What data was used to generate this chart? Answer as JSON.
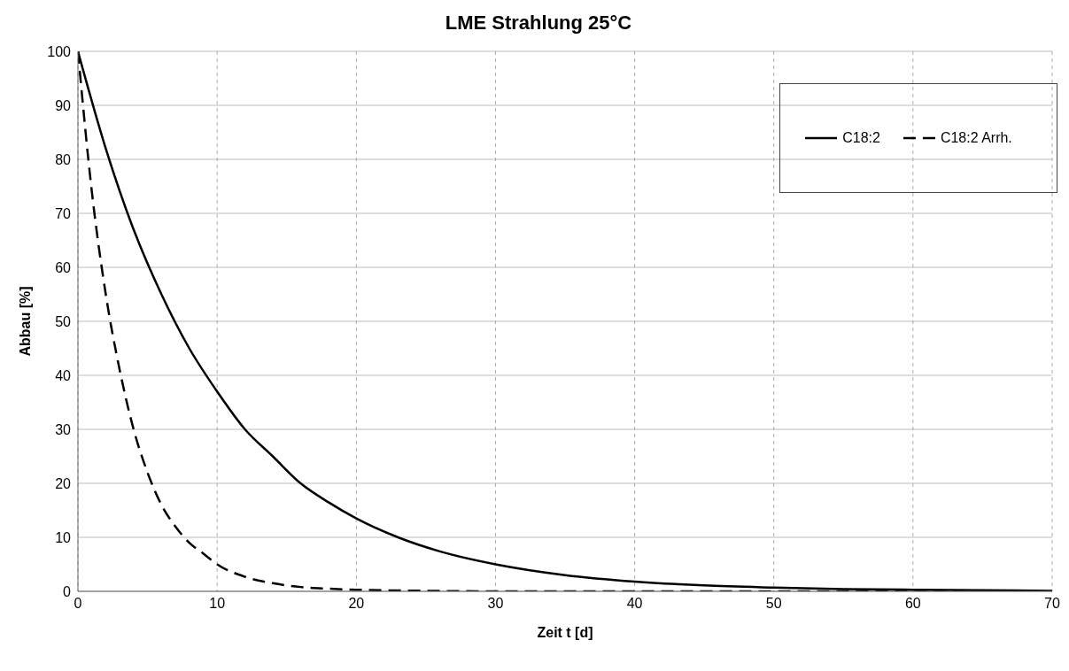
{
  "chart_data": {
    "type": "line",
    "title": "LME Strahlung 25°C",
    "xlabel": "Zeit t [d]",
    "ylabel": "Abbau [%]",
    "xlim": [
      0,
      70
    ],
    "xticks": [
      0,
      10,
      20,
      30,
      40,
      50,
      60,
      70
    ],
    "ylim": [
      0,
      100
    ],
    "yticks": [
      0,
      10,
      20,
      30,
      40,
      50,
      60,
      70,
      80,
      90,
      100
    ],
    "grid": true,
    "legend": "top right",
    "marker": "none",
    "series": [
      {
        "name": "C18:2",
        "color": "#000000",
        "line_style": "solid",
        "x": [
          0,
          2,
          4,
          6,
          8,
          10,
          12,
          14,
          16,
          18,
          20,
          23,
          26,
          30,
          35,
          40,
          45,
          50,
          55,
          60,
          65,
          70
        ],
        "values": [
          100,
          82,
          67,
          55,
          45,
          37,
          30,
          25,
          20,
          16.5,
          13.5,
          10,
          7.4,
          5,
          3,
          1.8,
          1.1,
          0.7,
          0.4,
          0.3,
          0.2,
          0.1
        ]
      },
      {
        "name": "C18:2 Arrh.",
        "color": "#000000",
        "line_style": "dashed",
        "x": [
          0,
          1,
          2,
          3,
          4,
          5,
          6,
          7,
          8,
          9,
          10,
          12,
          14,
          16,
          18,
          20,
          25,
          30,
          40,
          50,
          60,
          70
        ],
        "values": [
          100,
          74,
          55,
          41,
          30,
          22,
          16,
          12,
          9,
          7,
          5,
          2.7,
          1.5,
          0.8,
          0.5,
          0.3,
          0.1,
          0,
          0,
          0,
          0,
          0
        ]
      }
    ]
  }
}
